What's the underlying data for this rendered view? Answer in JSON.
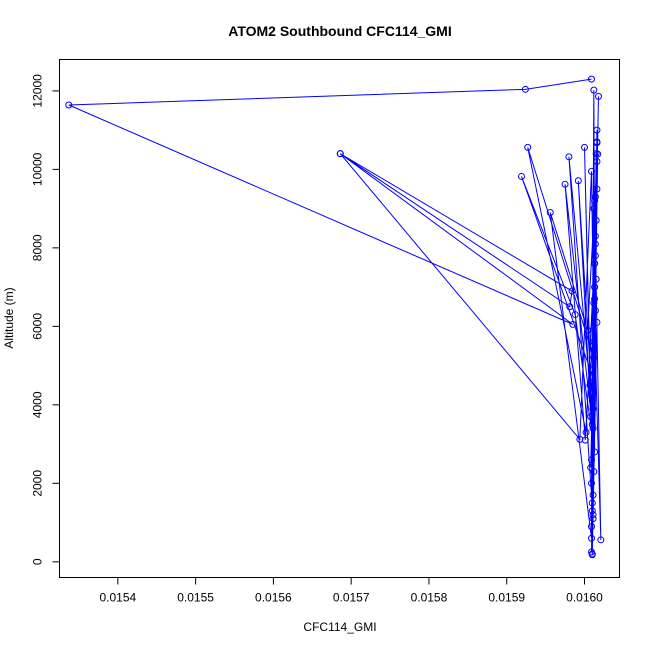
{
  "chart_data": {
    "type": "line",
    "title": "ATOM2 Southbound CFC114_GMI",
    "xlabel": "CFC114_GMI",
    "ylabel": "Altitude (m)",
    "xlim": [
      0.015325,
      0.016045
    ],
    "ylim": [
      -400,
      12800
    ],
    "x_ticks": [
      0.0154,
      0.0155,
      0.0156,
      0.0157,
      0.0158,
      0.0159,
      0.016
    ],
    "x_tick_labels": [
      "0.0154",
      "0.0155",
      "0.0156",
      "0.0157",
      "0.0158",
      "0.0159",
      "0.0160"
    ],
    "y_ticks": [
      0,
      2000,
      4000,
      6000,
      8000,
      10000,
      12000
    ],
    "y_tick_labels": [
      "0",
      "2000",
      "4000",
      "6000",
      "8000",
      "10000",
      "12000"
    ],
    "grid": false,
    "legend": "none",
    "series": [
      {
        "color": "#0000ff",
        "marker": "open-circle",
        "points": [
          [
            0.016009,
            12300
          ],
          [
            0.015924,
            12040
          ],
          [
            0.015337,
            11640
          ],
          [
            0.015985,
            6050
          ],
          [
            0.015686,
            10400
          ],
          [
            0.015981,
            6500
          ],
          [
            0.015984,
            6900
          ],
          [
            0.015686,
            10400
          ],
          [
            0.015994,
            3120
          ],
          [
            0.016009,
            9950
          ],
          [
            0.016012,
            5600
          ],
          [
            0.016008,
            2400
          ],
          [
            0.016015,
            8700
          ],
          [
            0.016011,
            1200
          ],
          [
            0.016016,
            10700
          ],
          [
            0.01601,
            4300
          ],
          [
            0.016013,
            7600
          ],
          [
            0.016012,
            12020
          ],
          [
            0.016009,
            900
          ],
          [
            0.016014,
            9300
          ],
          [
            0.016011,
            3900
          ],
          [
            0.016016,
            6100
          ],
          [
            0.01601,
            200
          ],
          [
            0.016013,
            7000
          ],
          [
            0.016015,
            10400
          ],
          [
            0.016009,
            2000
          ],
          [
            0.016012,
            5200
          ],
          [
            0.015927,
            10560
          ],
          [
            0.016002,
            3300
          ],
          [
            0.016014,
            8300
          ],
          [
            0.01601,
            1500
          ],
          [
            0.016016,
            11000
          ],
          [
            0.016011,
            4700
          ],
          [
            0.015919,
            9820
          ],
          [
            0.015988,
            6300
          ],
          [
            0.016013,
            2800
          ],
          [
            0.016012,
            9000
          ],
          [
            0.016009,
            600
          ],
          [
            0.015956,
            8900
          ],
          [
            0.016004,
            5900
          ],
          [
            0.016016,
            10200
          ],
          [
            0.01601,
            3500
          ],
          [
            0.015975,
            9620
          ],
          [
            0.016001,
            3100
          ],
          [
            0.016014,
            7800
          ],
          [
            0.016011,
            1100
          ],
          [
            0.01598,
            10320
          ],
          [
            0.016007,
            4500
          ],
          [
            0.016013,
            6700
          ],
          [
            0.016009,
            250
          ],
          [
            0.016016,
            9500
          ],
          [
            0.016012,
            2300
          ],
          [
            0.015992,
            9710
          ],
          [
            0.01601,
            4100
          ],
          [
            0.016015,
            7200
          ],
          [
            0.016011,
            1700
          ],
          [
            0.016,
            10560
          ],
          [
            0.016008,
            3700
          ],
          [
            0.016014,
            6400
          ],
          [
            0.01601,
            180
          ],
          [
            0.016016,
            10680
          ],
          [
            0.016012,
            5400
          ],
          [
            0.016009,
            2600
          ],
          [
            0.016018,
            11860
          ],
          [
            0.016011,
            4900
          ],
          [
            0.016014,
            8100
          ],
          [
            0.01601,
            1300
          ],
          [
            0.016017,
            10390
          ],
          [
            0.016012,
            6600
          ],
          [
            0.016021,
            560
          ],
          [
            0.016013,
            9200
          ],
          [
            0.016011,
            3400
          ]
        ]
      }
    ]
  }
}
